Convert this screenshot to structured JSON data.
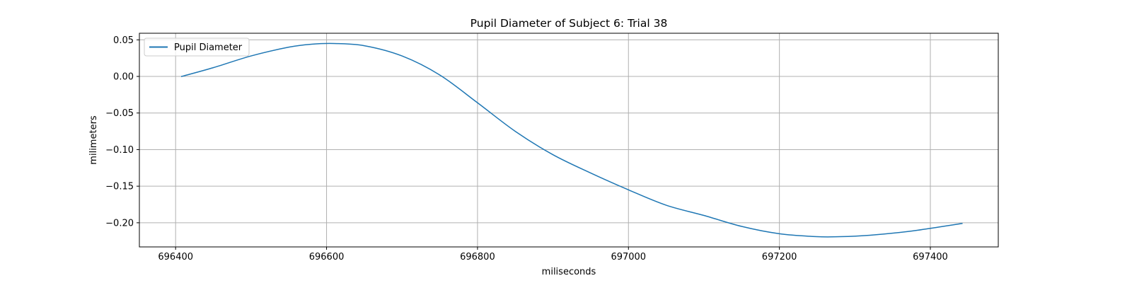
{
  "chart_data": {
    "type": "line",
    "title": "Pupil Diameter of Subject 6: Trial 38",
    "xlabel": "miliseconds",
    "ylabel": "milimeters",
    "xlim": [
      696352,
      697490
    ],
    "ylim": [
      -0.233,
      0.059
    ],
    "x_ticks": [
      696400,
      696600,
      696800,
      697000,
      697200,
      697400
    ],
    "y_ticks": [
      0.05,
      0.0,
      -0.05,
      -0.1,
      -0.15,
      -0.2
    ],
    "x_tick_labels": [
      "696400",
      "696600",
      "696800",
      "697000",
      "697200",
      "697400"
    ],
    "y_tick_labels": [
      "0.05",
      "0.00",
      "−0.05",
      "−0.10",
      "−0.15",
      "−0.20"
    ],
    "grid": true,
    "legend": {
      "position": "top-left",
      "entries": [
        "Pupil Diameter"
      ]
    },
    "series": [
      {
        "name": "Pupil Diameter",
        "color": "#1f77b4",
        "x": [
          696408,
          696450,
          696500,
          696550,
          696580,
          696610,
          696650,
          696700,
          696750,
          696800,
          696850,
          696900,
          696950,
          697000,
          697050,
          697100,
          697150,
          697200,
          697250,
          697280,
          697320,
          697370,
          697410,
          697442
        ],
        "y": [
          0.0,
          0.012,
          0.028,
          0.04,
          0.044,
          0.045,
          0.042,
          0.028,
          0.002,
          -0.036,
          -0.075,
          -0.107,
          -0.132,
          -0.155,
          -0.176,
          -0.19,
          -0.205,
          -0.215,
          -0.219,
          -0.219,
          -0.217,
          -0.212,
          -0.206,
          -0.201
        ]
      }
    ]
  }
}
